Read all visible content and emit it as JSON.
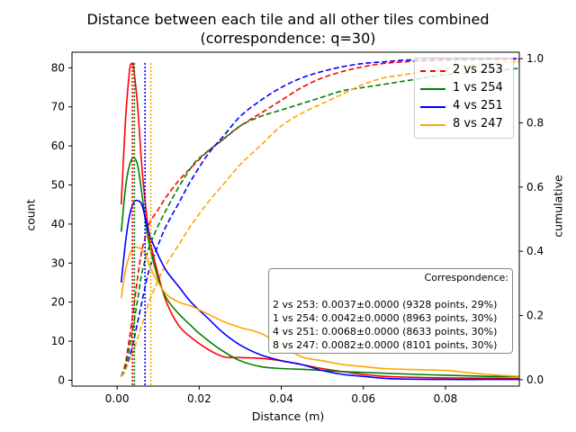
{
  "chart_data": {
    "type": "line",
    "title": "Distance between each tile and all other tiles combined",
    "subtitle": "(correspondence: q=30)",
    "xlabel": "Distance (m)",
    "ylabel": "count",
    "y2label": "cumulative",
    "xlim": [
      -0.011,
      0.098
    ],
    "ylim": [
      -1.5,
      84
    ],
    "y2lim": [
      -0.02,
      1.02
    ],
    "xticks": [
      "0.00",
      "0.02",
      "0.04",
      "0.06",
      "0.08"
    ],
    "xtick_values": [
      0,
      0.02,
      0.04,
      0.06,
      0.08
    ],
    "yticks": [
      "0",
      "10",
      "20",
      "30",
      "40",
      "50",
      "60",
      "70",
      "80"
    ],
    "ytick_values": [
      0,
      10,
      20,
      30,
      40,
      50,
      60,
      70,
      80
    ],
    "y2ticks": [
      "0.0",
      "0.2",
      "0.4",
      "0.6",
      "0.8",
      "1.0"
    ],
    "y2tick_values": [
      0,
      0.2,
      0.4,
      0.6,
      0.8,
      1.0
    ],
    "grid": false,
    "legend_position": "top-right",
    "series": [
      {
        "name": "2 vs 253",
        "color": "#ff0000",
        "density": [
          [
            0.001,
            45
          ],
          [
            0.002,
            66
          ],
          [
            0.003,
            79
          ],
          [
            0.0035,
            81
          ],
          [
            0.004,
            80
          ],
          [
            0.005,
            70
          ],
          [
            0.006,
            55
          ],
          [
            0.007,
            44
          ],
          [
            0.008,
            36
          ],
          [
            0.01,
            27
          ],
          [
            0.012,
            20
          ],
          [
            0.015,
            14
          ],
          [
            0.018,
            11
          ],
          [
            0.022,
            8
          ],
          [
            0.026,
            6
          ],
          [
            0.03,
            5.8
          ],
          [
            0.035,
            5.6
          ],
          [
            0.04,
            5
          ],
          [
            0.045,
            4
          ],
          [
            0.05,
            3
          ],
          [
            0.055,
            2.2
          ],
          [
            0.06,
            1.5
          ],
          [
            0.065,
            1
          ],
          [
            0.07,
            0.8
          ],
          [
            0.08,
            0.6
          ],
          [
            0.09,
            0.5
          ],
          [
            0.098,
            0.5
          ]
        ],
        "cumulative": [
          [
            0.001,
            0.01
          ],
          [
            0.002,
            0.05
          ],
          [
            0.003,
            0.13
          ],
          [
            0.004,
            0.22
          ],
          [
            0.005,
            0.32
          ],
          [
            0.006,
            0.4
          ],
          [
            0.007,
            0.45
          ],
          [
            0.008,
            0.49
          ],
          [
            0.01,
            0.53
          ],
          [
            0.012,
            0.57
          ],
          [
            0.015,
            0.62
          ],
          [
            0.018,
            0.66
          ],
          [
            0.022,
            0.71
          ],
          [
            0.026,
            0.75
          ],
          [
            0.03,
            0.79
          ],
          [
            0.035,
            0.83
          ],
          [
            0.04,
            0.87
          ],
          [
            0.045,
            0.91
          ],
          [
            0.05,
            0.94
          ],
          [
            0.055,
            0.96
          ],
          [
            0.06,
            0.975
          ],
          [
            0.065,
            0.985
          ],
          [
            0.07,
            0.99
          ],
          [
            0.08,
            0.995
          ],
          [
            0.098,
            0.998
          ]
        ],
        "mean_distance": 0.0037
      },
      {
        "name": "1 vs 254",
        "color": "#008000",
        "density": [
          [
            0.001,
            38
          ],
          [
            0.002,
            49
          ],
          [
            0.003,
            55
          ],
          [
            0.004,
            57
          ],
          [
            0.005,
            55
          ],
          [
            0.006,
            48
          ],
          [
            0.007,
            40
          ],
          [
            0.008,
            34
          ],
          [
            0.01,
            26
          ],
          [
            0.012,
            21
          ],
          [
            0.015,
            17
          ],
          [
            0.018,
            14
          ],
          [
            0.02,
            12
          ],
          [
            0.025,
            8
          ],
          [
            0.03,
            5
          ],
          [
            0.035,
            3.5
          ],
          [
            0.04,
            3
          ],
          [
            0.045,
            2.8
          ],
          [
            0.05,
            2.5
          ],
          [
            0.055,
            2.2
          ],
          [
            0.06,
            2
          ],
          [
            0.07,
            1.6
          ],
          [
            0.08,
            1.3
          ],
          [
            0.09,
            1
          ],
          [
            0.098,
            1
          ]
        ],
        "cumulative": [
          [
            0.001,
            0.01
          ],
          [
            0.002,
            0.04
          ],
          [
            0.003,
            0.1
          ],
          [
            0.004,
            0.17
          ],
          [
            0.005,
            0.25
          ],
          [
            0.006,
            0.33
          ],
          [
            0.007,
            0.38
          ],
          [
            0.008,
            0.42
          ],
          [
            0.01,
            0.48
          ],
          [
            0.012,
            0.53
          ],
          [
            0.015,
            0.6
          ],
          [
            0.018,
            0.66
          ],
          [
            0.02,
            0.69
          ],
          [
            0.025,
            0.74
          ],
          [
            0.03,
            0.79
          ],
          [
            0.035,
            0.82
          ],
          [
            0.04,
            0.84
          ],
          [
            0.045,
            0.86
          ],
          [
            0.05,
            0.88
          ],
          [
            0.055,
            0.9
          ],
          [
            0.06,
            0.91
          ],
          [
            0.07,
            0.93
          ],
          [
            0.08,
            0.95
          ],
          [
            0.09,
            0.96
          ],
          [
            0.098,
            0.97
          ]
        ],
        "mean_distance": 0.0042
      },
      {
        "name": "4 vs 251",
        "color": "#0000ff",
        "density": [
          [
            0.001,
            25
          ],
          [
            0.002,
            35
          ],
          [
            0.003,
            42
          ],
          [
            0.004,
            45.5
          ],
          [
            0.005,
            46
          ],
          [
            0.006,
            45
          ],
          [
            0.007,
            41
          ],
          [
            0.008,
            37
          ],
          [
            0.01,
            32
          ],
          [
            0.012,
            28
          ],
          [
            0.015,
            24
          ],
          [
            0.018,
            20
          ],
          [
            0.022,
            16
          ],
          [
            0.026,
            12
          ],
          [
            0.03,
            9
          ],
          [
            0.035,
            6.5
          ],
          [
            0.04,
            5
          ],
          [
            0.045,
            4
          ],
          [
            0.05,
            2.5
          ],
          [
            0.055,
            1.5
          ],
          [
            0.06,
            1
          ],
          [
            0.065,
            0.5
          ],
          [
            0.07,
            0.3
          ],
          [
            0.08,
            0.2
          ],
          [
            0.09,
            0.2
          ],
          [
            0.098,
            0.2
          ]
        ],
        "cumulative": [
          [
            0.001,
            0.01
          ],
          [
            0.002,
            0.03
          ],
          [
            0.003,
            0.07
          ],
          [
            0.004,
            0.12
          ],
          [
            0.005,
            0.18
          ],
          [
            0.006,
            0.24
          ],
          [
            0.007,
            0.3
          ],
          [
            0.008,
            0.35
          ],
          [
            0.01,
            0.42
          ],
          [
            0.012,
            0.48
          ],
          [
            0.015,
            0.55
          ],
          [
            0.018,
            0.62
          ],
          [
            0.022,
            0.7
          ],
          [
            0.026,
            0.76
          ],
          [
            0.03,
            0.82
          ],
          [
            0.035,
            0.87
          ],
          [
            0.04,
            0.91
          ],
          [
            0.045,
            0.94
          ],
          [
            0.05,
            0.96
          ],
          [
            0.055,
            0.975
          ],
          [
            0.06,
            0.985
          ],
          [
            0.065,
            0.99
          ],
          [
            0.07,
            0.995
          ],
          [
            0.08,
            0.998
          ],
          [
            0.098,
            1.0
          ]
        ],
        "mean_distance": 0.0068
      },
      {
        "name": "8 vs 247",
        "color": "#ffa500",
        "density": [
          [
            0.001,
            21
          ],
          [
            0.002,
            28
          ],
          [
            0.003,
            32
          ],
          [
            0.004,
            34
          ],
          [
            0.005,
            34
          ],
          [
            0.006,
            33.5
          ],
          [
            0.007,
            32
          ],
          [
            0.008,
            29
          ],
          [
            0.01,
            25
          ],
          [
            0.012,
            22
          ],
          [
            0.015,
            20
          ],
          [
            0.018,
            19
          ],
          [
            0.022,
            17
          ],
          [
            0.026,
            15
          ],
          [
            0.03,
            13.5
          ],
          [
            0.035,
            12
          ],
          [
            0.04,
            9
          ],
          [
            0.045,
            6
          ],
          [
            0.05,
            5
          ],
          [
            0.055,
            4
          ],
          [
            0.06,
            3.5
          ],
          [
            0.065,
            3
          ],
          [
            0.07,
            2.8
          ],
          [
            0.08,
            2.5
          ],
          [
            0.085,
            2
          ],
          [
            0.09,
            1.5
          ],
          [
            0.098,
            1
          ]
        ],
        "cumulative": [
          [
            0.001,
            0.01
          ],
          [
            0.002,
            0.03
          ],
          [
            0.003,
            0.06
          ],
          [
            0.004,
            0.09
          ],
          [
            0.005,
            0.13
          ],
          [
            0.006,
            0.17
          ],
          [
            0.007,
            0.21
          ],
          [
            0.008,
            0.25
          ],
          [
            0.01,
            0.31
          ],
          [
            0.012,
            0.36
          ],
          [
            0.015,
            0.42
          ],
          [
            0.018,
            0.48
          ],
          [
            0.022,
            0.55
          ],
          [
            0.026,
            0.61
          ],
          [
            0.03,
            0.67
          ],
          [
            0.035,
            0.73
          ],
          [
            0.04,
            0.79
          ],
          [
            0.045,
            0.83
          ],
          [
            0.05,
            0.86
          ],
          [
            0.055,
            0.89
          ],
          [
            0.06,
            0.92
          ],
          [
            0.065,
            0.94
          ],
          [
            0.07,
            0.95
          ],
          [
            0.08,
            0.97
          ],
          [
            0.09,
            0.985
          ],
          [
            0.098,
            0.99
          ]
        ],
        "mean_distance": 0.0082
      }
    ],
    "annotation": {
      "title": "Correspondence:",
      "lines": [
        "2 vs 253: 0.0037±0.0000 (9328 points, 29%)",
        "1 vs 254: 0.0042±0.0000 (8963 points, 30%)",
        "4 vs 251: 0.0068±0.0000 (8633 points, 30%)",
        "8 vs 247: 0.0082±0.0000 (8101 points, 30%)"
      ]
    }
  }
}
